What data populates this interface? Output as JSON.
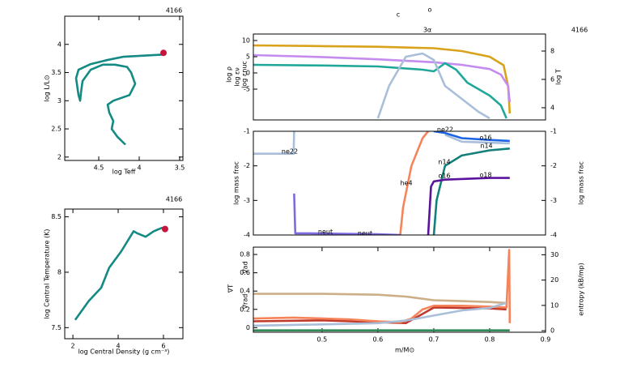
{
  "chart_data": [
    {
      "type": "line",
      "model": "4166",
      "xlabel": "log Teff",
      "ylabel": "log L/L⊙",
      "xlim": [
        4.92,
        3.46
      ],
      "ylim": [
        1.94,
        4.5
      ],
      "xticks": [
        4.5,
        4,
        3.5
      ],
      "yticks": [
        2,
        2.5,
        3,
        3.5,
        4
      ],
      "series": [
        {
          "color": "#138a84",
          "x": [
            4.17,
            4.27,
            4.34,
            4.32,
            4.37,
            4.39,
            4.32,
            4.12,
            4.05,
            4.1,
            4.15,
            4.3,
            4.45,
            4.6,
            4.7,
            4.72,
            4.73,
            4.75,
            4.78,
            4.75,
            4.6,
            4.4,
            4.2,
            3.95,
            3.7,
            3.68
          ],
          "values": [
            2.22,
            2.36,
            2.5,
            2.64,
            2.79,
            2.93,
            3.0,
            3.1,
            3.3,
            3.5,
            3.6,
            3.64,
            3.64,
            3.55,
            3.35,
            3.14,
            3.0,
            3.1,
            3.4,
            3.55,
            3.65,
            3.72,
            3.78,
            3.8,
            3.82,
            3.84
          ]
        }
      ],
      "marker": {
        "x": 3.7,
        "y": 3.85,
        "color": "#c8143c"
      }
    },
    {
      "type": "line",
      "model": "4166",
      "xlabel": "log Central Density (g cm⁻³)",
      "ylabel": "log Central Temperature (K)",
      "xlim": [
        1.64,
        6.86
      ],
      "ylim": [
        7.4,
        8.57
      ],
      "xticks": [
        2,
        4,
        6
      ],
      "yticks": [
        7.5,
        8,
        8.5
      ],
      "series": [
        {
          "color": "#138a84",
          "x": [
            2.1,
            2.7,
            3.25,
            3.6,
            4.14,
            4.68,
            4.86,
            5.21,
            5.57,
            5.93,
            6.07
          ],
          "values": [
            7.57,
            7.74,
            7.86,
            8.04,
            8.19,
            8.37,
            8.35,
            8.32,
            8.37,
            8.4,
            8.39
          ]
        }
      ],
      "marker": {
        "x": 6.07,
        "y": 8.39,
        "color": "#c8143c"
      }
    },
    {
      "type": "line",
      "model": "4166",
      "annotations": [
        "c",
        "o",
        "3α"
      ],
      "xlim": [
        0.377,
        0.9
      ],
      "ylim": [
        -14.5,
        12
      ],
      "yticks": [
        10,
        5,
        0,
        -5
      ],
      "y2lim": [
        3.14,
        9.2
      ],
      "y2ticks": [
        8,
        6,
        4
      ],
      "series": [
        {
          "name": "log T",
          "axis": "y2",
          "color": "#d9a21b",
          "x": [
            0.377,
            0.5,
            0.6,
            0.7,
            0.75,
            0.8,
            0.825,
            0.833,
            0.836
          ],
          "values": [
            8.4,
            8.35,
            8.3,
            8.2,
            8.0,
            7.6,
            7.0,
            5.5,
            3.6
          ]
        },
        {
          "name": "log ρ",
          "color": "#c58cf0",
          "x": [
            0.377,
            0.5,
            0.6,
            0.7,
            0.75,
            0.8,
            0.82,
            0.833,
            0.836
          ],
          "values": [
            5.5,
            4.9,
            4.2,
            3.3,
            2.5,
            1.2,
            -0.5,
            -4,
            -9
          ]
        },
        {
          "name": "log εν",
          "color": "#1fa89a",
          "x": [
            0.377,
            0.5,
            0.6,
            0.68,
            0.7,
            0.72,
            0.74,
            0.76,
            0.8,
            0.82,
            0.83
          ],
          "values": [
            2.5,
            2.3,
            2,
            1,
            0.5,
            3,
            1,
            -3,
            -7,
            -10,
            -14
          ]
        },
        {
          "name": "log εnuc",
          "color": "#a9bfd9",
          "x": [
            0.6,
            0.62,
            0.65,
            0.68,
            0.7,
            0.72,
            0.75,
            0.78,
            0.8
          ],
          "values": [
            -14,
            -4,
            5,
            6,
            4,
            -4,
            -8,
            -12,
            -14
          ]
        }
      ]
    },
    {
      "type": "line",
      "ylabel": "log mass frac",
      "y2label": "log mass frac",
      "xlim": [
        0.377,
        0.9
      ],
      "ylim": [
        -4,
        -1
      ],
      "yticks": [
        -1,
        -2,
        -3,
        -4
      ],
      "y2lim": [
        -4,
        -1
      ],
      "y2ticks": [
        -1,
        -2,
        -3,
        -4
      ],
      "labels": [
        "ne22",
        "ne22",
        "o16",
        "n14",
        "n14",
        "o16",
        "o18",
        "he4",
        "neut",
        "neut"
      ],
      "series": [
        {
          "color": "#a9bfd9",
          "x": [
            0.377,
            0.449,
            0.45,
            0.451,
            0.72,
            0.75,
            0.8,
            0.836
          ],
          "values": [
            -1.65,
            -1.65,
            -1.0,
            null,
            -1.1,
            -1.3,
            -1.33,
            -1.35
          ]
        },
        {
          "color": "#f5845a",
          "x": [
            0.64,
            0.645,
            0.66,
            0.68,
            0.69
          ],
          "values": [
            -4,
            -3.2,
            -2,
            -1.2,
            -1
          ]
        },
        {
          "color": "#1e64e6",
          "x": [
            0.7,
            0.72,
            0.75,
            0.8,
            0.836
          ],
          "values": [
            -1.0,
            -1.05,
            -1.2,
            -1.25,
            -1.28
          ]
        },
        {
          "color": "#13807a",
          "x": [
            0.7,
            0.705,
            0.72,
            0.75,
            0.8,
            0.836
          ],
          "values": [
            -4,
            -3,
            -2.0,
            -1.7,
            -1.55,
            -1.5
          ]
        },
        {
          "color": "#5a139c",
          "x": [
            0.69,
            0.695,
            0.7,
            0.72,
            0.8,
            0.836
          ],
          "values": [
            -4,
            -2.6,
            -2.45,
            -2.4,
            -2.35,
            -2.35
          ]
        },
        {
          "color": "#7b6de0",
          "x": [
            0.45,
            0.452,
            0.47,
            0.6,
            0.64
          ],
          "values": [
            -2.8,
            -3.95,
            -3.95,
            -3.98,
            -4
          ]
        }
      ]
    },
    {
      "type": "line",
      "xlabel": "m/M⊙",
      "y2label": "entropy (kB/mp)",
      "xlim": [
        0.377,
        0.9
      ],
      "ylim": [
        -0.05,
        0.88
      ],
      "xticks": [
        0.5,
        0.6,
        0.7,
        0.8,
        0.9
      ],
      "yticks": [
        0,
        0.2,
        0.4,
        0.6,
        0.8
      ],
      "y2lim": [
        -0.6,
        33
      ],
      "y2ticks": [
        0,
        10,
        20,
        30
      ],
      "series": [
        {
          "name": "∇ad",
          "color": "#ccae88",
          "x": [
            0.377,
            0.5,
            0.6,
            0.65,
            0.7,
            0.75,
            0.8,
            0.83
          ],
          "values": [
            0.37,
            0.37,
            0.36,
            0.34,
            0.3,
            0.29,
            0.28,
            0.27
          ]
        },
        {
          "name": "∇T",
          "color": "#c0392b",
          "x": [
            0.377,
            0.5,
            0.6,
            0.65,
            0.68,
            0.7,
            0.8,
            0.83
          ],
          "values": [
            0.07,
            0.08,
            0.06,
            0.05,
            0.15,
            0.22,
            0.21,
            0.2
          ]
        },
        {
          "name": "∇rad",
          "color": "#f5845a",
          "x": [
            0.377,
            0.45,
            0.55,
            0.6,
            0.64,
            0.66,
            0.68,
            0.7,
            0.75,
            0.8,
            0.83,
            0.835,
            0.836
          ],
          "values": [
            0.1,
            0.11,
            0.09,
            0.07,
            0.06,
            0.1,
            0.2,
            0.24,
            0.24,
            0.23,
            0.22,
            0.85,
            0.05
          ]
        },
        {
          "axis": "y2",
          "color": "#a9bfd9",
          "x": [
            0.377,
            0.5,
            0.6,
            0.65,
            0.7,
            0.75,
            0.8,
            0.83
          ],
          "values": [
            2,
            2.5,
            3,
            4,
            6,
            8,
            9,
            11
          ]
        },
        {
          "color": "#2e8b57",
          "x": [
            0.377,
            0.836
          ],
          "values": [
            -0.03,
            -0.03
          ]
        }
      ]
    }
  ]
}
